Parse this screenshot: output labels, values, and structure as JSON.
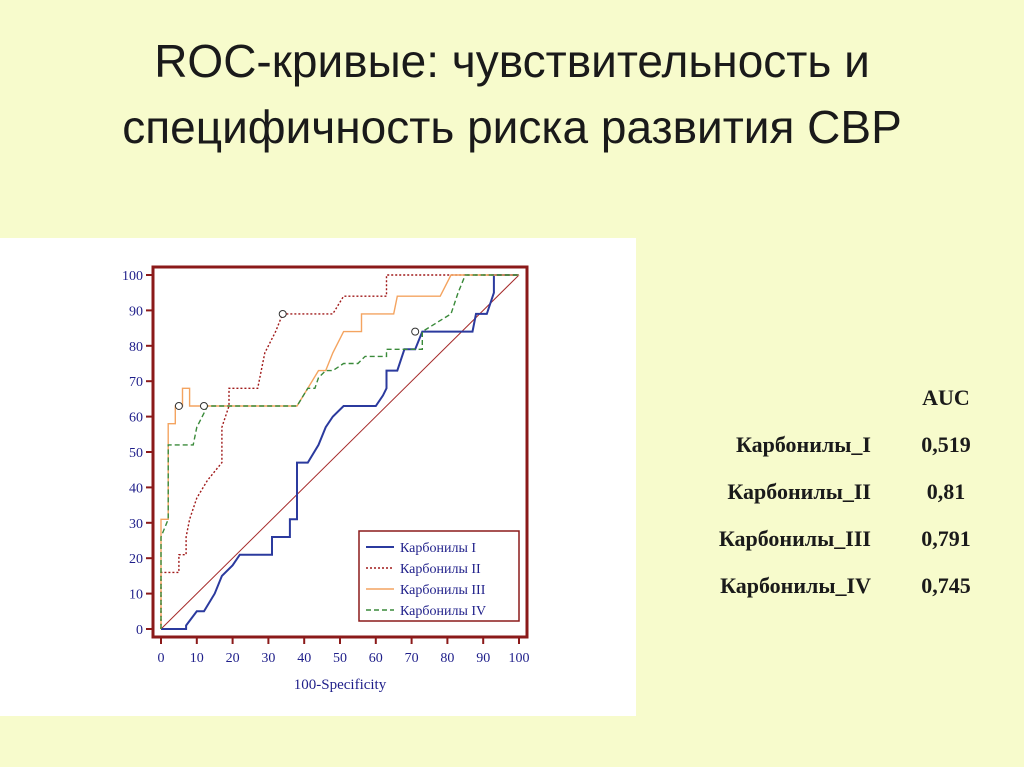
{
  "slide": {
    "title": "ROC-кривые: чувствительность и специфичность риска развития СВР"
  },
  "auc_table": {
    "header": "AUC",
    "rows": [
      {
        "name": "Карбонилы_I",
        "value": "0,519"
      },
      {
        "name": "Карбонилы_II",
        "value": "0,81"
      },
      {
        "name": "Карбонилы_III",
        "value": "0,791"
      },
      {
        "name": "Карбонилы_IV",
        "value": "0,745"
      }
    ]
  },
  "colors": {
    "frame": "#8b1a1a",
    "diagonal": "#a52a2a",
    "tick_text": "#1f1f8a"
  },
  "chart_data": {
    "type": "line",
    "xlabel": "100-Specificity",
    "ylabel": "",
    "xlim": [
      0,
      100
    ],
    "ylim": [
      0,
      100
    ],
    "x_ticks": [
      "0",
      "10",
      "20",
      "30",
      "40",
      "50",
      "60",
      "70",
      "80",
      "90",
      "100"
    ],
    "y_ticks": [
      "0",
      "10",
      "20",
      "30",
      "40",
      "50",
      "60",
      "70",
      "80",
      "90",
      "100"
    ],
    "grid": false,
    "legend_position": "bottom-right",
    "diagonal": true,
    "series": [
      {
        "name": "Карбонилы I",
        "color": "#2b3a9e",
        "style": "solid",
        "points": [
          [
            0,
            0
          ],
          [
            7,
            0
          ],
          [
            7,
            1
          ],
          [
            10,
            5
          ],
          [
            12,
            5
          ],
          [
            15,
            10
          ],
          [
            17,
            15
          ],
          [
            20,
            18
          ],
          [
            22,
            21
          ],
          [
            31,
            21
          ],
          [
            31,
            26
          ],
          [
            36,
            26
          ],
          [
            36,
            31
          ],
          [
            38,
            31
          ],
          [
            38,
            47
          ],
          [
            41,
            47
          ],
          [
            44,
            52
          ],
          [
            46,
            57
          ],
          [
            48,
            60
          ],
          [
            51,
            63
          ],
          [
            60,
            63
          ],
          [
            62,
            66
          ],
          [
            63,
            68
          ],
          [
            63,
            73
          ],
          [
            66,
            73
          ],
          [
            68,
            79
          ],
          [
            71,
            79
          ],
          [
            73,
            84
          ],
          [
            87,
            84
          ],
          [
            88,
            89
          ],
          [
            91,
            89
          ],
          [
            93,
            95
          ],
          [
            93,
            100
          ],
          [
            100,
            100
          ]
        ],
        "markers": [
          [
            71,
            84
          ]
        ]
      },
      {
        "name": "Карбонилы II",
        "color": "#a01a1a",
        "style": "dotted",
        "points": [
          [
            0,
            0
          ],
          [
            0,
            16
          ],
          [
            5,
            16
          ],
          [
            5,
            21
          ],
          [
            7,
            21
          ],
          [
            7,
            26
          ],
          [
            8,
            31
          ],
          [
            10,
            37
          ],
          [
            13,
            42
          ],
          [
            17,
            47
          ],
          [
            17,
            57
          ],
          [
            19,
            63
          ],
          [
            19,
            68
          ],
          [
            27,
            68
          ],
          [
            29,
            78
          ],
          [
            32,
            84
          ],
          [
            34,
            89
          ],
          [
            48,
            89
          ],
          [
            51,
            94
          ],
          [
            63,
            94
          ],
          [
            63,
            100
          ],
          [
            100,
            100
          ]
        ],
        "markers": [
          [
            34,
            89
          ]
        ]
      },
      {
        "name": "Карбонилы III",
        "color": "#f4a460",
        "style": "solid",
        "points": [
          [
            0,
            0
          ],
          [
            0,
            31
          ],
          [
            2,
            31
          ],
          [
            2,
            58
          ],
          [
            4,
            58
          ],
          [
            4,
            63
          ],
          [
            6,
            63
          ],
          [
            6,
            68
          ],
          [
            8,
            68
          ],
          [
            8,
            63
          ],
          [
            38,
            63
          ],
          [
            41,
            68
          ],
          [
            44,
            73
          ],
          [
            46,
            73
          ],
          [
            48,
            78
          ],
          [
            51,
            84
          ],
          [
            56,
            84
          ],
          [
            56,
            89
          ],
          [
            65,
            89
          ],
          [
            66,
            94
          ],
          [
            78,
            94
          ],
          [
            81,
            100
          ],
          [
            100,
            100
          ]
        ],
        "markers": [
          [
            5,
            63
          ]
        ]
      },
      {
        "name": "Карбонилы IV",
        "color": "#3a8a3a",
        "style": "dashed",
        "points": [
          [
            0,
            0
          ],
          [
            0,
            26
          ],
          [
            2,
            31
          ],
          [
            2,
            52
          ],
          [
            9,
            52
          ],
          [
            10,
            57
          ],
          [
            12,
            61
          ],
          [
            13,
            63
          ],
          [
            38,
            63
          ],
          [
            41,
            68
          ],
          [
            43,
            68
          ],
          [
            44,
            71
          ],
          [
            46,
            73
          ],
          [
            48,
            73
          ],
          [
            51,
            75
          ],
          [
            55,
            75
          ],
          [
            57,
            77
          ],
          [
            63,
            77
          ],
          [
            63,
            79
          ],
          [
            73,
            79
          ],
          [
            73,
            84
          ],
          [
            81,
            89
          ],
          [
            83,
            95
          ],
          [
            85,
            100
          ],
          [
            100,
            100
          ]
        ],
        "markers": [
          [
            12,
            63
          ]
        ]
      }
    ]
  }
}
